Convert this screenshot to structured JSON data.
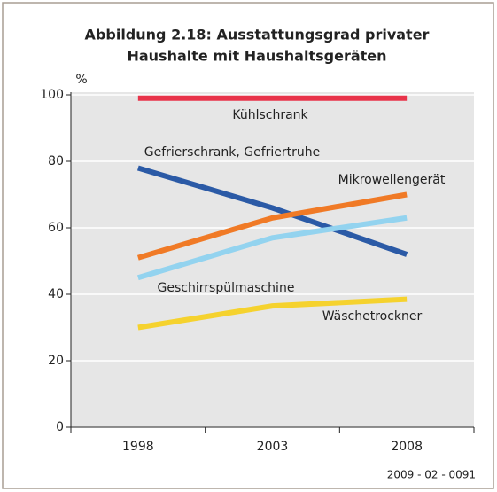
{
  "chart_data": {
    "type": "line",
    "title": [
      "Abbildung 2.18: Ausstattungsgrad privater",
      "Haushalte mit Haushaltsgeräten"
    ],
    "y_label": "%",
    "categories": [
      "1998",
      "2003",
      "2008"
    ],
    "series": [
      {
        "name": "Kühlschrank",
        "color": "#e8334a",
        "values": [
          99,
          99,
          99
        ]
      },
      {
        "name": "Gefrierschrank, Gefriertruhe",
        "color": "#2b5aa6",
        "values": [
          78,
          66,
          52
        ]
      },
      {
        "name": "Mikrowellengerät",
        "color": "#f07a26",
        "values": [
          51,
          63,
          70
        ]
      },
      {
        "name": "Geschirrspülmaschine",
        "color": "#93d3ef",
        "values": [
          45,
          57,
          63
        ]
      },
      {
        "name": "Wäschetrockner",
        "color": "#f5d22e",
        "values": [
          30,
          36.5,
          38.5
        ]
      }
    ],
    "ylim": [
      0,
      100
    ],
    "yticks": [
      0,
      20,
      40,
      60,
      80,
      100
    ],
    "grid": true,
    "note": "2009 - 02 - 0091"
  }
}
